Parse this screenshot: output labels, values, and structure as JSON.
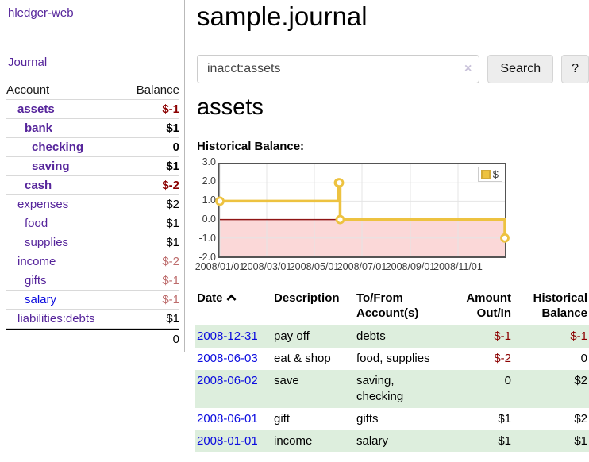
{
  "app": {
    "brand": "hledger-web",
    "nav": {
      "journal": "Journal"
    }
  },
  "sidebar": {
    "header": {
      "account": "Account",
      "balance": "Balance"
    },
    "accounts": [
      {
        "name": "assets",
        "level": 1,
        "bold": true,
        "link_color": "purple",
        "balance": "$-1",
        "balance_style": "neg-dark"
      },
      {
        "name": "bank",
        "level": 2,
        "bold": true,
        "link_color": "purple",
        "balance": "$1",
        "balance_style": "pos"
      },
      {
        "name": "checking",
        "level": 3,
        "bold": true,
        "link_color": "purple",
        "balance": "0",
        "balance_style": "pos"
      },
      {
        "name": "saving",
        "level": 3,
        "bold": true,
        "link_color": "purple",
        "balance": "$1",
        "balance_style": "pos"
      },
      {
        "name": "cash",
        "level": 2,
        "bold": true,
        "link_color": "purple",
        "balance": "$-2",
        "balance_style": "neg-dark"
      },
      {
        "name": "expenses",
        "level": 1,
        "bold": false,
        "link_color": "purple",
        "balance": "$2",
        "balance_style": "pos"
      },
      {
        "name": "food",
        "level": 2,
        "bold": false,
        "link_color": "purple",
        "balance": "$1",
        "balance_style": "pos"
      },
      {
        "name": "supplies",
        "level": 2,
        "bold": false,
        "link_color": "purple",
        "balance": "$1",
        "balance_style": "pos"
      },
      {
        "name": "income",
        "level": 1,
        "bold": false,
        "link_color": "purple",
        "balance": "$-2",
        "balance_style": "neg-light"
      },
      {
        "name": "gifts",
        "level": 2,
        "bold": false,
        "link_color": "purple",
        "balance": "$-1",
        "balance_style": "neg-light"
      },
      {
        "name": "salary",
        "level": 2,
        "bold": false,
        "link_color": "blue",
        "balance": "$-1",
        "balance_style": "neg-light"
      },
      {
        "name": "liabilities:debts",
        "level": 1,
        "bold": false,
        "link_color": "purple",
        "balance": "$1",
        "balance_style": "pos"
      }
    ],
    "total": "0"
  },
  "main": {
    "title": "sample.journal",
    "search": {
      "value": "inacct:assets",
      "clear_icon": "×",
      "button_label": "Search",
      "help_label": "?"
    },
    "account_heading": "assets",
    "chart_heading": "Historical Balance:"
  },
  "chart_data": {
    "type": "line",
    "step": true,
    "title": "Historical Balance",
    "series": [
      {
        "name": "$",
        "color": "#edc240",
        "points": [
          [
            "2008-01-01",
            1
          ],
          [
            "2008-06-01",
            2
          ],
          [
            "2008-06-02",
            2
          ],
          [
            "2008-06-03",
            0
          ],
          [
            "2008-12-31",
            -1
          ]
        ]
      }
    ],
    "xlim": [
      "2008-01-01",
      "2008-12-31"
    ],
    "ylim": [
      -2,
      3
    ],
    "x_ticks": [
      "2008/01/01",
      "2008/03/01",
      "2008/05/01",
      "2008/07/01",
      "2008/09/01",
      "2008/11/01"
    ],
    "y_ticks": [
      3.0,
      2.0,
      1.0,
      0.0,
      -1.0,
      -2.0
    ],
    "grid": true,
    "legend_position": "top-right",
    "negative_fill": "#fbd8d8",
    "zero_line_color": "#8f1414",
    "grid_color": "#e4e4e4",
    "marker": "open-circle"
  },
  "table": {
    "headers": {
      "date": "Date",
      "description": "Description",
      "accounts": "To/From Account(s)",
      "amount": "Amount Out/In",
      "balance": "Historical Balance"
    },
    "rows": [
      {
        "date": "2008-12-31",
        "description": "pay off",
        "accounts": "debts",
        "amount": "$-1",
        "balance": "$-1",
        "green": true
      },
      {
        "date": "2008-06-03",
        "description": "eat & shop",
        "accounts": "food, supplies",
        "amount": "$-2",
        "balance": "0",
        "green": false
      },
      {
        "date": "2008-06-02",
        "description": "save",
        "accounts": "saving, checking",
        "amount": "0",
        "balance": "$2",
        "green": true
      },
      {
        "date": "2008-06-01",
        "description": "gift",
        "accounts": "gifts",
        "amount": "$1",
        "balance": "$2",
        "green": false
      },
      {
        "date": "2008-01-01",
        "description": "income",
        "accounts": "salary",
        "amount": "$1",
        "balance": "$1",
        "green": true
      }
    ]
  }
}
